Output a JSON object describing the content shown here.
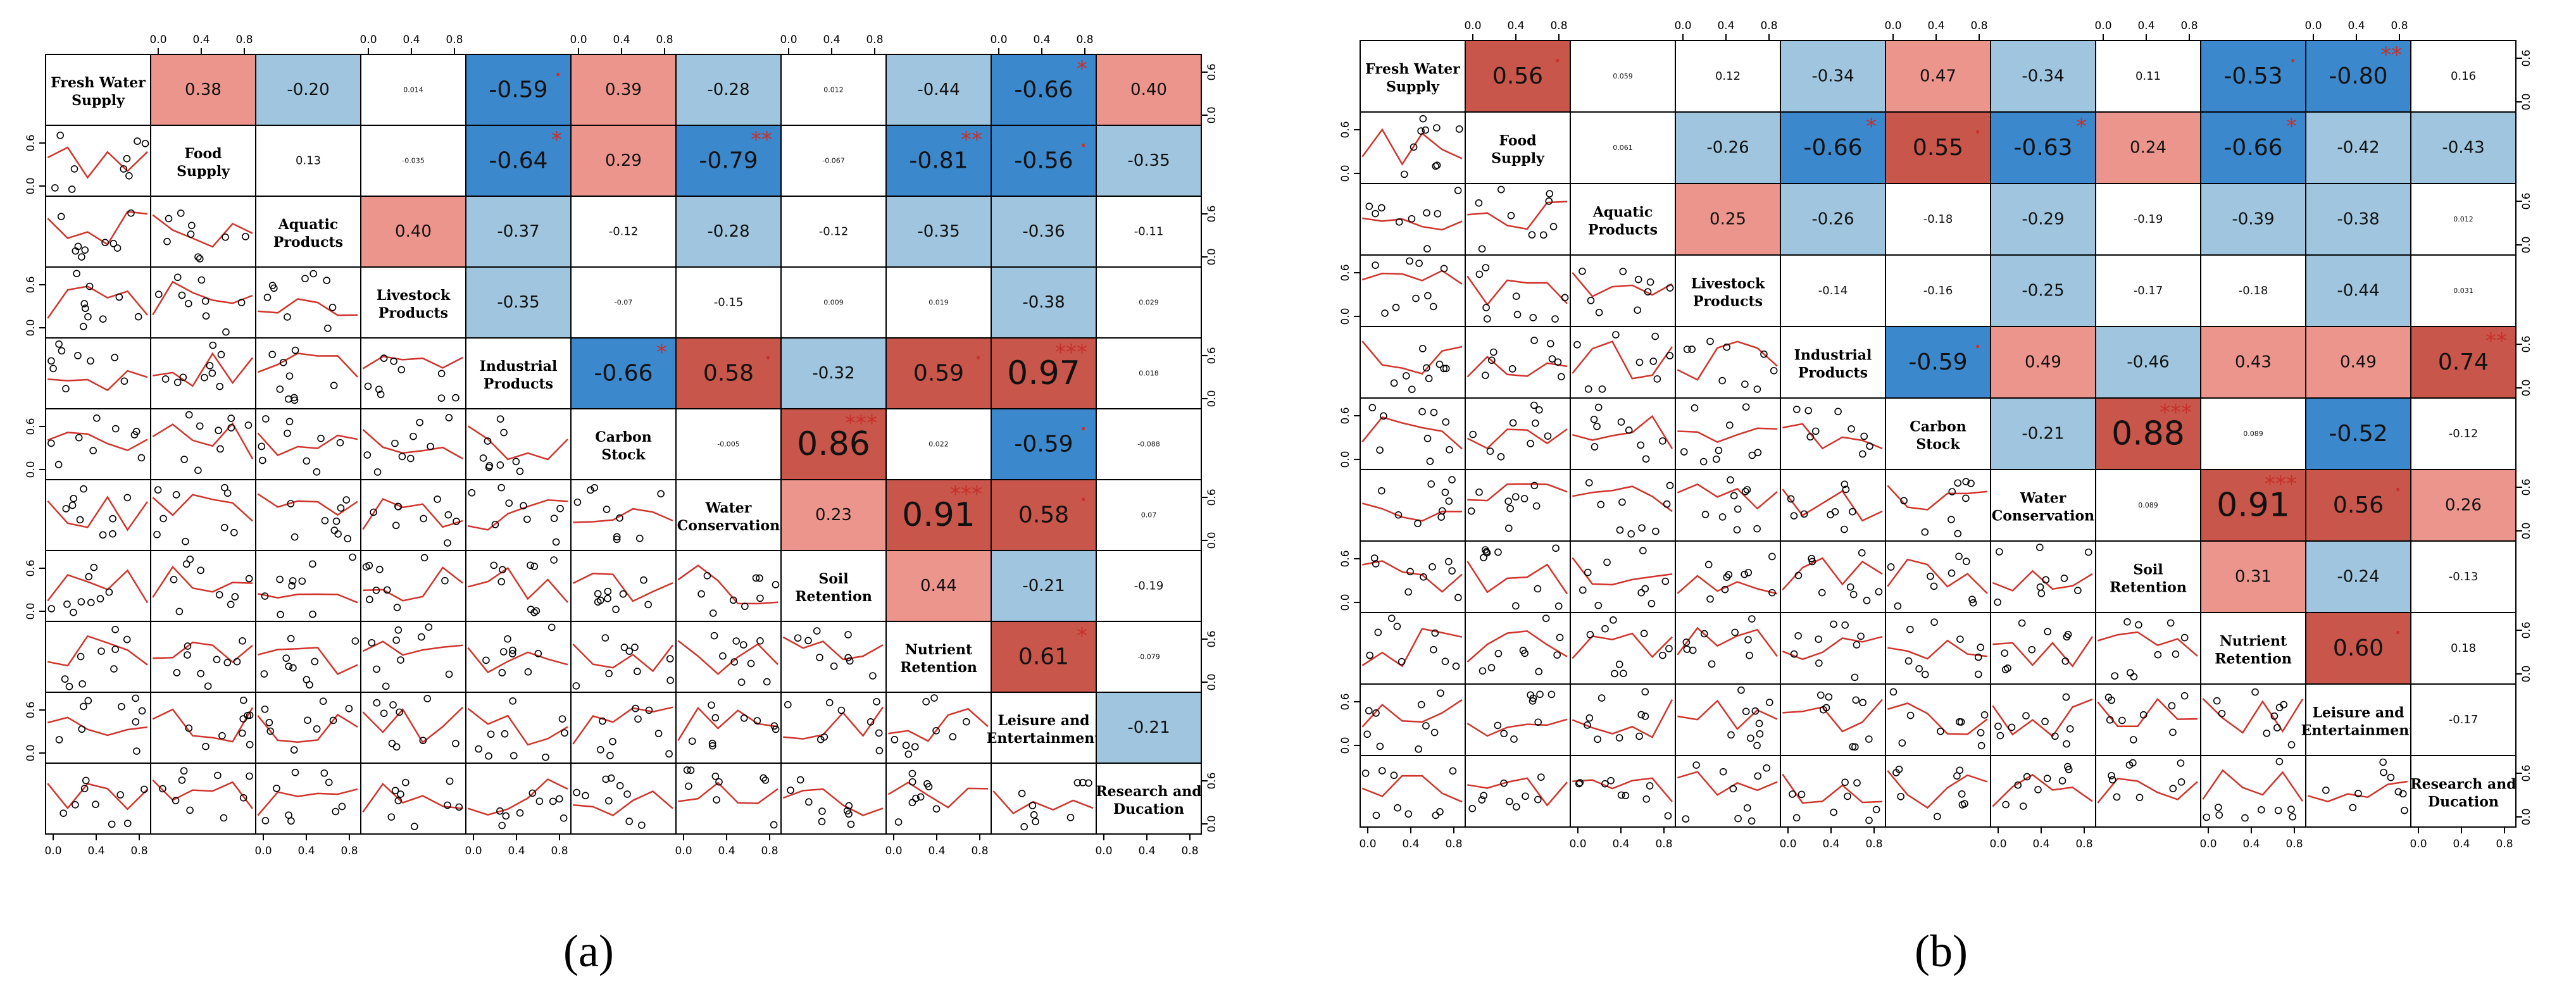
{
  "figure": {
    "labels": [
      "(a)",
      "(b)"
    ],
    "colors": {
      "strong_neg": "#3b88cc",
      "weak_neg": "#9fc6de",
      "strong_pos": "#c8564a",
      "weak_pos": "#ec958c",
      "neutral": "#ffffff",
      "lines": "#d0342c",
      "stars": "#c8302a"
    }
  },
  "chart_data": [
    {
      "type": "heatmap",
      "panel": "(a)",
      "variables": [
        [
          "Fresh Water",
          "Supply"
        ],
        [
          "Food",
          "Supply"
        ],
        [
          "Aquatic",
          "Products"
        ],
        [
          "Livestock",
          "Products"
        ],
        [
          "Industrial",
          "Products"
        ],
        [
          "Carbon",
          "Stock"
        ],
        [
          "Water",
          "Conservation"
        ],
        [
          "Soil",
          "Retention"
        ],
        [
          "Nutrient",
          "Retention"
        ],
        [
          "Leisure and",
          "Entertainment"
        ],
        [
          "Research and",
          "Ducation"
        ]
      ],
      "axis_ticks": [
        "0.0",
        "0.4",
        "0.8"
      ],
      "scatter_axis_ticks": [
        "0.0",
        "0.6"
      ],
      "correlations": [
        [
          "0.38",
          "-0.20",
          "0.014",
          "-0.59",
          "0.39",
          "-0.28",
          "0.012",
          "-0.44",
          "-0.66",
          "0.40"
        ],
        [
          "0.13",
          "-0.035",
          "-0.64",
          "0.29",
          "-0.79",
          "-0.067",
          "-0.81",
          "-0.56",
          "-0.35"
        ],
        [
          "0.40",
          "-0.37",
          "-0.12",
          "-0.28",
          "-0.12",
          "-0.35",
          "-0.36",
          "-0.11"
        ],
        [
          "-0.35",
          "-0.07",
          "-0.15",
          "0.009",
          "0.019",
          "-0.38",
          "0.029"
        ],
        [
          "-0.66",
          "0.58",
          "-0.32",
          "0.59",
          "0.97",
          "0.018"
        ],
        [
          "-0.005",
          "0.86",
          "0.022",
          "-0.59",
          "-0.088"
        ],
        [
          "0.23",
          "0.91",
          "0.58",
          "0.07"
        ],
        [
          "0.44",
          "-0.21",
          "-0.19"
        ],
        [
          "0.61",
          "-0.079"
        ],
        [
          "-0.21"
        ]
      ],
      "significance": [
        [
          "",
          "",
          "",
          ".",
          "",
          "",
          "",
          "",
          "*",
          ""
        ],
        [
          "",
          "",
          "*",
          "",
          "**",
          "",
          "**",
          ".",
          ""
        ],
        [
          "",
          "",
          "",
          "",
          "",
          "",
          "",
          ""
        ],
        [
          "",
          "",
          "",
          "",
          "",
          "",
          ""
        ],
        [
          "*",
          ".",
          "",
          ".",
          "***",
          ""
        ],
        [
          "",
          "***",
          "",
          ".",
          ""
        ],
        [
          "",
          "***",
          ".",
          ""
        ],
        [
          "",
          "",
          ""
        ],
        [
          "*",
          ""
        ],
        [
          ""
        ]
      ]
    },
    {
      "type": "heatmap",
      "panel": "(b)",
      "variables": [
        [
          "Fresh Water",
          "Supply"
        ],
        [
          "Food",
          "Supply"
        ],
        [
          "Aquatic",
          "Products"
        ],
        [
          "Livestock",
          "Products"
        ],
        [
          "Industrial",
          "Products"
        ],
        [
          "Carbon",
          "Stock"
        ],
        [
          "Water",
          "Conservation"
        ],
        [
          "Soil",
          "Retention"
        ],
        [
          "Nutrient",
          "Retention"
        ],
        [
          "Leisure and",
          "Entertainment"
        ],
        [
          "Research and",
          "Ducation"
        ]
      ],
      "axis_ticks": [
        "0.0",
        "0.4",
        "0.8"
      ],
      "scatter_axis_ticks": [
        "0.0",
        "0.6"
      ],
      "correlations": [
        [
          "0.56",
          "0.059",
          "0.12",
          "-0.34",
          "0.47",
          "-0.34",
          "0.11",
          "-0.53",
          "-0.80",
          "0.16"
        ],
        [
          "0.061",
          "-0.26",
          "-0.66",
          "0.55",
          "-0.63",
          "0.24",
          "-0.66",
          "-0.42",
          "-0.43"
        ],
        [
          "0.25",
          "-0.26",
          "-0.18",
          "-0.29",
          "-0.19",
          "-0.39",
          "-0.38",
          "0.012"
        ],
        [
          "-0.14",
          "-0.16",
          "-0.25",
          "-0.17",
          "-0.18",
          "-0.44",
          "0.031"
        ],
        [
          "-0.59",
          "0.49",
          "-0.46",
          "0.43",
          "0.49",
          "0.74"
        ],
        [
          "-0.21",
          "0.88",
          "0.089",
          "-0.52",
          "-0.12"
        ],
        [
          "0.089",
          "0.91",
          "0.56",
          "0.26"
        ],
        [
          "0.31",
          "-0.24",
          "-0.13"
        ],
        [
          "0.60",
          "0.18"
        ],
        [
          "-0.17"
        ]
      ],
      "significance": [
        [
          ".",
          "",
          "",
          "",
          "",
          "",
          "",
          ".",
          "**",
          ""
        ],
        [
          "",
          "",
          "*",
          ".",
          "*",
          "",
          "*",
          "",
          ""
        ],
        [
          "",
          "",
          "",
          "",
          "",
          "",
          "",
          ""
        ],
        [
          "",
          "",
          "",
          "",
          "",
          "",
          ""
        ],
        [
          ".",
          "",
          "",
          "",
          "",
          "**"
        ],
        [
          "",
          "***",
          "",
          "",
          ""
        ],
        [
          "",
          "***",
          ".",
          ""
        ],
        [
          "",
          "",
          ""
        ],
        [
          ".",
          ""
        ],
        [
          ""
        ]
      ]
    }
  ]
}
